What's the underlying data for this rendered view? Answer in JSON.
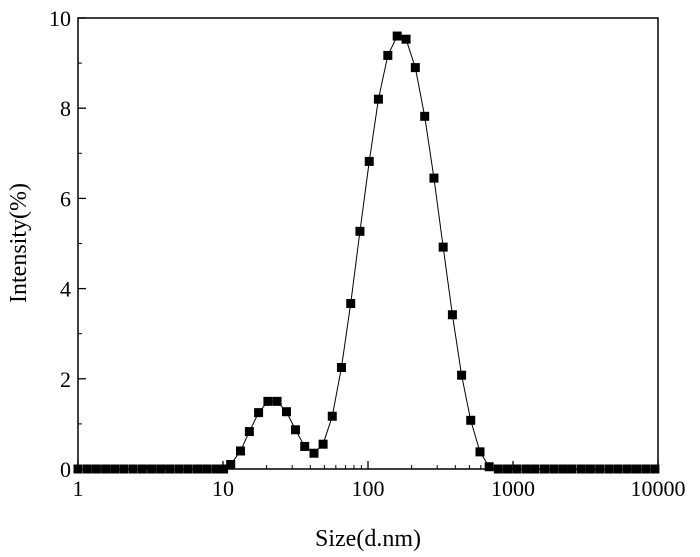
{
  "chart_data": {
    "type": "scatter",
    "xlabel": "Size(d.nm)",
    "ylabel": "Intensity(%)",
    "xscale": "log",
    "xlim": [
      1,
      10000
    ],
    "ylim": [
      0,
      10
    ],
    "xticks": [
      1,
      10,
      100,
      1000,
      10000
    ],
    "xtick_labels": [
      "1",
      "10",
      "100",
      "1000",
      "10000"
    ],
    "yticks": [
      0,
      2,
      4,
      6,
      8,
      10
    ],
    "ytick_labels": [
      "0",
      "2",
      "4",
      "6",
      "8",
      "10"
    ],
    "grid": false,
    "marker": "square",
    "line": "connected",
    "series": [
      {
        "color": "#000000",
        "points": [
          [
            1.0,
            0
          ],
          [
            1.16,
            0
          ],
          [
            1.34,
            0
          ],
          [
            1.55,
            0
          ],
          [
            1.79,
            0
          ],
          [
            2.07,
            0
          ],
          [
            2.4,
            0
          ],
          [
            2.78,
            0
          ],
          [
            3.22,
            0
          ],
          [
            3.72,
            0
          ],
          [
            4.3,
            0
          ],
          [
            4.98,
            0
          ],
          [
            5.76,
            0
          ],
          [
            6.67,
            0
          ],
          [
            7.71,
            0
          ],
          [
            8.92,
            0
          ],
          [
            10.1,
            0
          ],
          [
            11.3,
            0.1
          ],
          [
            13.2,
            0.4
          ],
          [
            15.2,
            0.83
          ],
          [
            17.6,
            1.25
          ],
          [
            20.4,
            1.5
          ],
          [
            23.6,
            1.5
          ],
          [
            27.4,
            1.27
          ],
          [
            31.6,
            0.87
          ],
          [
            36.6,
            0.5
          ],
          [
            42.4,
            0.35
          ],
          [
            49.0,
            0.55
          ],
          [
            56.7,
            1.17
          ],
          [
            65.6,
            2.25
          ],
          [
            76.0,
            3.67
          ],
          [
            88.0,
            5.27
          ],
          [
            102,
            6.82
          ],
          [
            118,
            8.2
          ],
          [
            137,
            9.17
          ],
          [
            159,
            9.6
          ],
          [
            183,
            9.53
          ],
          [
            212,
            8.9
          ],
          [
            246,
            7.82
          ],
          [
            285,
            6.45
          ],
          [
            330,
            4.92
          ],
          [
            382,
            3.42
          ],
          [
            442,
            2.08
          ],
          [
            511,
            1.08
          ],
          [
            592,
            0.38
          ],
          [
            685,
            0.05
          ],
          [
            792,
            0
          ],
          [
            917,
            0
          ],
          [
            1060,
            0
          ],
          [
            1230,
            0
          ],
          [
            1420,
            0
          ],
          [
            1650,
            0
          ],
          [
            1910,
            0
          ],
          [
            2210,
            0
          ],
          [
            2550,
            0
          ],
          [
            2960,
            0
          ],
          [
            3420,
            0
          ],
          [
            3960,
            0
          ],
          [
            4590,
            0
          ],
          [
            5310,
            0
          ],
          [
            6150,
            0
          ],
          [
            7110,
            0
          ],
          [
            8230,
            0
          ],
          [
            9520,
            0
          ]
        ]
      }
    ]
  }
}
